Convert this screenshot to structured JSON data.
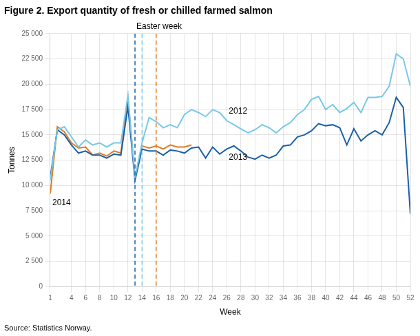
{
  "chart_data": {
    "type": "line",
    "title": "Figure 2. Export quantity of fresh or chilled farmed salmon",
    "subtitle": "Source: Statistics Norway.",
    "x_label": "Week",
    "y_label": "Tonnes",
    "xlim": [
      1,
      52
    ],
    "xticks": [
      1,
      4,
      6,
      8,
      10,
      12,
      14,
      16,
      18,
      20,
      22,
      24,
      26,
      28,
      30,
      32,
      34,
      36,
      38,
      40,
      42,
      44,
      46,
      48,
      50,
      52
    ],
    "ylim": [
      0,
      25000
    ],
    "yticks": [
      0,
      {
        "value": 2500,
        "label": "2 500"
      },
      {
        "value": 5000,
        "label": "5 000"
      },
      {
        "value": 7500,
        "label": "7 500"
      },
      {
        "value": 10000,
        "label": "10 000"
      },
      {
        "value": 12500,
        "label": "12 500"
      },
      {
        "value": 15000,
        "label": "15 000"
      },
      {
        "value": 17500,
        "label": "17 500"
      },
      {
        "value": 20000,
        "label": "20 000"
      },
      {
        "value": 22500,
        "label": "22 500"
      },
      {
        "value": 25000,
        "label": "25 000"
      }
    ],
    "grid": true,
    "series": [
      {
        "name": "2012",
        "color": "#76c8e8",
        "x": [
          1,
          2,
          3,
          4,
          5,
          6,
          7,
          8,
          9,
          10,
          11,
          12,
          13,
          14,
          15,
          16,
          17,
          18,
          19,
          20,
          21,
          22,
          23,
          24,
          25,
          26,
          27,
          28,
          29,
          30,
          31,
          32,
          33,
          34,
          35,
          36,
          37,
          38,
          39,
          40,
          41,
          42,
          43,
          44,
          45,
          46,
          47,
          48,
          49,
          50,
          51,
          52
        ],
        "values": [
          10500,
          15500,
          15800,
          14800,
          13800,
          14500,
          14000,
          14200,
          13800,
          14200,
          14200,
          18900,
          10800,
          14200,
          16700,
          16300,
          15700,
          16000,
          15700,
          17000,
          17500,
          17200,
          16800,
          17500,
          17200,
          16400,
          16000,
          15600,
          15200,
          15500,
          16000,
          15700,
          15200,
          15800,
          16200,
          17000,
          17500,
          18500,
          18800,
          17500,
          18000,
          17200,
          17600,
          18200,
          17200,
          18700,
          18700,
          18800,
          19800,
          23000,
          22500,
          19800
        ]
      },
      {
        "name": "2013",
        "color": "#1a5fa8",
        "x": [
          1,
          2,
          3,
          4,
          5,
          6,
          7,
          8,
          9,
          10,
          11,
          12,
          13,
          14,
          15,
          16,
          17,
          18,
          19,
          20,
          21,
          22,
          23,
          24,
          25,
          26,
          27,
          28,
          29,
          30,
          31,
          32,
          33,
          34,
          35,
          36,
          37,
          38,
          39,
          40,
          41,
          42,
          43,
          44,
          45,
          46,
          47,
          48,
          49,
          50,
          51,
          52
        ],
        "values": [
          10800,
          15500,
          15000,
          14000,
          13200,
          13400,
          13000,
          13000,
          12700,
          13100,
          13000,
          17800,
          10500,
          13600,
          13400,
          13400,
          13000,
          13500,
          13400,
          13200,
          13700,
          13800,
          12700,
          13800,
          13100,
          13600,
          13900,
          13400,
          12800,
          12600,
          13000,
          12700,
          13000,
          13900,
          14000,
          14800,
          15000,
          15400,
          16100,
          15900,
          16000,
          15700,
          14000,
          15600,
          14400,
          15000,
          15400,
          15000,
          16200,
          18700,
          17700,
          7200
        ]
      },
      {
        "name": "2014",
        "color": "#e07b20",
        "x": [
          1,
          2,
          3,
          4,
          5,
          6,
          7,
          8,
          9,
          10,
          11,
          12,
          13,
          14,
          15,
          16,
          17,
          18,
          19,
          20,
          21
        ],
        "values": [
          9200,
          15800,
          15300,
          14200,
          13700,
          13800,
          13000,
          13200,
          12900,
          13400,
          13200,
          18600,
          10800,
          13900,
          13700,
          13900,
          13600,
          14000,
          13800,
          13800,
          14000
        ]
      }
    ],
    "vertical_lines": [
      {
        "value": 13,
        "color": "#1a5fa8",
        "line_style": "dashed"
      },
      {
        "value": 14,
        "color": "#76c8e8",
        "line_style": "dashed"
      },
      {
        "value": 16,
        "color": "#e07b20",
        "line_style": "dashed"
      }
    ],
    "annotation": "Easter week"
  }
}
